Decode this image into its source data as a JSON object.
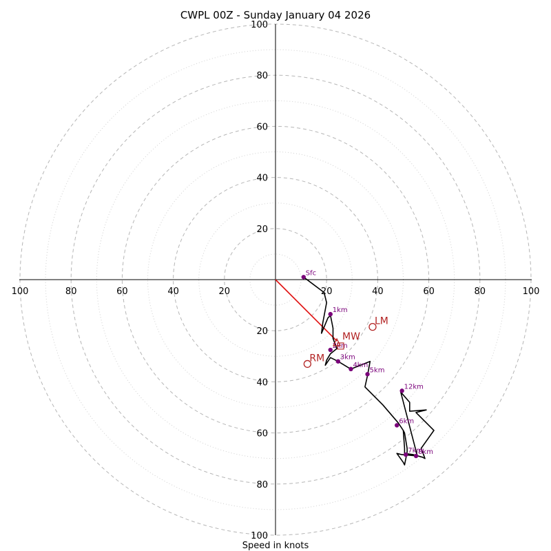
{
  "chart_data": {
    "type": "hodograph",
    "title": "CWPL 00Z - Sunday January 04 2026",
    "xlabel": "Speed in knots",
    "max_speed": 100,
    "ring_major_step": 20,
    "ring_minor_step": 10,
    "ticks": {
      "left": [
        "100",
        "80",
        "60",
        "40",
        "20"
      ],
      "right": [
        "20",
        "40",
        "60",
        "80",
        "100"
      ],
      "top": [
        "20",
        "40",
        "60",
        "80",
        "100"
      ],
      "bottom": [
        "20",
        "40",
        "60",
        "80",
        "100"
      ]
    },
    "tick_values": [
      20,
      40,
      60,
      80,
      100
    ],
    "trace": [
      [
        11,
        1
      ],
      [
        19,
        -5
      ],
      [
        20,
        -9
      ],
      [
        18.5,
        -17
      ],
      [
        18,
        -21
      ],
      [
        20.5,
        -15
      ],
      [
        21.5,
        -14
      ],
      [
        22.5,
        -19
      ],
      [
        22.5,
        -23
      ],
      [
        24,
        -27
      ],
      [
        21.5,
        -29
      ],
      [
        20,
        -31.5
      ],
      [
        19.5,
        -33.5
      ],
      [
        21.5,
        -30.5
      ],
      [
        24.5,
        -32
      ],
      [
        29.5,
        -35
      ],
      [
        32,
        -34
      ],
      [
        37,
        -32
      ],
      [
        36,
        -37.5
      ],
      [
        35,
        -42
      ],
      [
        42,
        -49
      ],
      [
        48,
        -56
      ],
      [
        50,
        -59
      ],
      [
        50.5,
        -66
      ],
      [
        50.5,
        -68
      ],
      [
        54,
        -68.5
      ],
      [
        57.5,
        -69.5
      ],
      [
        58.5,
        -70
      ],
      [
        57,
        -66
      ],
      [
        62,
        -59
      ],
      [
        55,
        -52
      ],
      [
        59,
        -51
      ],
      [
        52.5,
        -51.5
      ],
      [
        52.5,
        -48
      ],
      [
        49,
        -44
      ],
      [
        55.5,
        -69
      ],
      [
        49.5,
        -68.5
      ],
      [
        47.5,
        -68
      ],
      [
        50,
        -71.5
      ],
      [
        50.5,
        -72.5
      ],
      [
        51.5,
        -67.5
      ],
      [
        51.5,
        -66
      ],
      [
        50.5,
        -60
      ],
      [
        50,
        -59
      ]
    ],
    "height_points": [
      {
        "label": "Sfc",
        "u": 11,
        "v": 1
      },
      {
        "label": "1km",
        "u": 21.5,
        "v": -13.5
      },
      {
        "label": "2km",
        "u": 21.5,
        "v": -27.5
      },
      {
        "label": "3km",
        "u": 24.5,
        "v": -32
      },
      {
        "label": "4km",
        "u": 29.5,
        "v": -35
      },
      {
        "label": "5km",
        "u": 36,
        "v": -37
      },
      {
        "label": "6km",
        "u": 47.5,
        "v": -57
      },
      {
        "label": "7km",
        "u": 51,
        "v": -68.5
      },
      {
        "label": "8km",
        "u": 55,
        "v": -69
      },
      {
        "label": "12km",
        "u": 49.5,
        "v": -43.5
      }
    ],
    "storm_motion_vector": {
      "u0": 0,
      "v0": 0,
      "u1": 24,
      "v1": -24
    },
    "storm_motions": [
      {
        "label": "LM",
        "u": 38,
        "v": -18.5,
        "marker": "circle"
      },
      {
        "label": "MW",
        "u": 24,
        "v": -24.5,
        "marker": "triangle"
      },
      {
        "label": "RM",
        "u": 12.5,
        "v": -33,
        "marker": "circle"
      }
    ],
    "colors": {
      "trace": "#000000",
      "height_point": "#7a007a",
      "storm_vector": "#e01010",
      "storm_marker": "#b22222"
    }
  }
}
